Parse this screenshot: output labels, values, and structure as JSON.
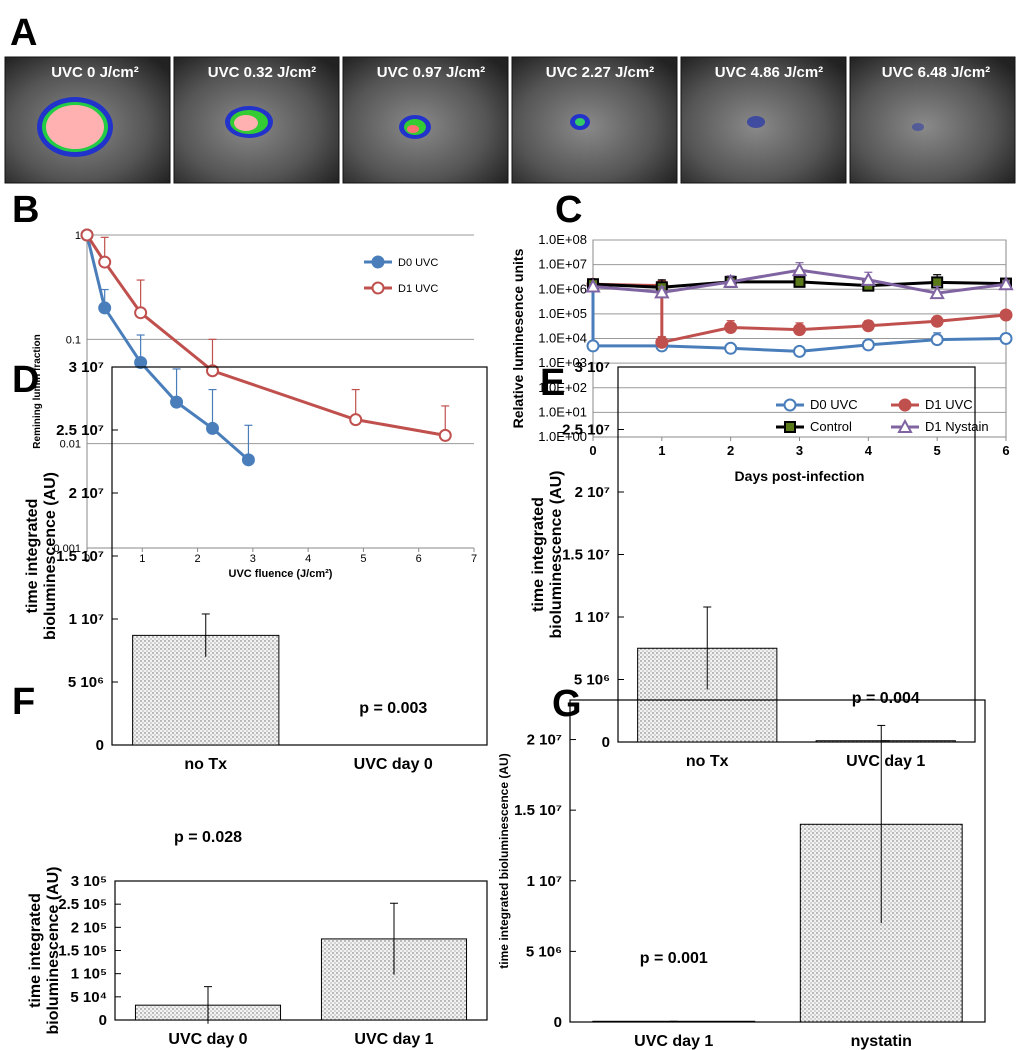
{
  "image_panel": {
    "label": "A",
    "frames": [
      "UVC 0 J/cm²",
      "UVC 0.32 J/cm²",
      "UVC 0.97 J/cm²",
      "UVC 2.27 J/cm²",
      "UVC 4.86 J/cm²",
      "UVC 6.48 J/cm²"
    ]
  },
  "chart_data": [
    {
      "type": "line",
      "label": "B",
      "log_y": true,
      "grid": true,
      "legend": "upper right",
      "xlabel": "UVC fluence (J/cm²)",
      "ylabel": "Remining lumin fraction",
      "xlim": [
        0,
        7
      ],
      "xticks": [
        0,
        1,
        2,
        3,
        4,
        5,
        6,
        7
      ],
      "ylim": [
        0.001,
        1
      ],
      "yticks": [
        0.001,
        0.01,
        0.1,
        1
      ],
      "series": [
        {
          "name": "D0 UVC",
          "color": "#4a7ebb",
          "marker": "circle",
          "marker_fill": "#4a7ebb",
          "x": [
            0,
            0.32,
            0.97,
            1.62,
            2.27,
            2.92
          ],
          "values": [
            1,
            0.2,
            0.06,
            0.025,
            0.014,
            0.007
          ],
          "errors": [
            0,
            0.1,
            0.05,
            0.027,
            0.019,
            0.008
          ]
        },
        {
          "name": "D1 UVC",
          "color": "#c0504d",
          "marker": "circle",
          "marker_fill": "#ffffff",
          "x": [
            0,
            0.32,
            0.97,
            2.27,
            4.86,
            6.48
          ],
          "values": [
            1,
            0.55,
            0.18,
            0.05,
            0.017,
            0.012
          ],
          "errors": [
            0,
            0.4,
            0.19,
            0.05,
            0.016,
            0.011
          ]
        }
      ]
    },
    {
      "type": "line",
      "label": "C",
      "log_y": true,
      "grid": true,
      "legend": "lower right",
      "xlabel": "Days post-infection",
      "ylabel": "Relative luminesence units",
      "xlim": [
        0,
        6
      ],
      "xticks": [
        0,
        1,
        2,
        3,
        4,
        5,
        6
      ],
      "ylim": [
        1,
        100000000
      ],
      "yticks": [
        {
          "value": 1,
          "label": "1.0E+00"
        },
        {
          "value": 10,
          "label": "1.0E+01"
        },
        {
          "value": 100,
          "label": "1.0E+02"
        },
        {
          "value": 1000,
          "label": "1.0E+03"
        },
        {
          "value": 10000,
          "label": "1.0E+04"
        },
        {
          "value": 100000,
          "label": "1.0E+05"
        },
        {
          "value": 1000000,
          "label": "1.0E+06"
        },
        {
          "value": 10000000,
          "label": "1.0E+07"
        },
        {
          "value": 100000000,
          "label": "1.0E+08"
        }
      ],
      "series": [
        {
          "name": "D0 UVC",
          "color": "#4a7ebb",
          "marker": "circle",
          "marker_fill": "#ffffff",
          "x": [
            0,
            0,
            1,
            2,
            3,
            4,
            5,
            6
          ],
          "values": [
            1500000,
            5000,
            5000,
            4000,
            3000,
            5500,
            9000,
            10000
          ],
          "errors": [
            0,
            0,
            0,
            0,
            0,
            3000,
            8000,
            6000
          ]
        },
        {
          "name": "D1 UVC",
          "color": "#c0504d",
          "marker": "circle",
          "marker_fill": "#c0504d",
          "x": [
            0,
            1,
            1,
            2,
            3,
            4,
            5,
            6
          ],
          "values": [
            1600000,
            1400000,
            7000,
            28000,
            23000,
            33000,
            50000,
            90000
          ],
          "errors": [
            0,
            0,
            5000,
            25000,
            20000,
            20000,
            30000,
            40000
          ]
        },
        {
          "name": "Control",
          "color": "#000000",
          "marker": "square",
          "marker_fill": "#5a7a1a",
          "x": [
            0,
            1,
            2,
            3,
            4,
            5,
            6
          ],
          "values": [
            1600000,
            1200000,
            2000000,
            2000000,
            1400000,
            1900000,
            1700000
          ],
          "errors": [
            0,
            1200000,
            1000000,
            1000000,
            700000,
            2000000,
            900000
          ]
        },
        {
          "name": "D1 Nystain",
          "color": "#8064a2",
          "marker": "triangle",
          "marker_fill": "#ffffff",
          "x": [
            0,
            1,
            2,
            3,
            4,
            5,
            6
          ],
          "values": [
            1300000,
            750000,
            2000000,
            6000000,
            2400000,
            700000,
            1600000
          ],
          "errors": [
            300000,
            500000,
            1500000,
            6000000,
            2500000,
            600000,
            600000
          ]
        }
      ]
    },
    {
      "type": "bar",
      "label": "D",
      "ylabel": [
        "time integrated",
        "bioluminescence (AU)"
      ],
      "categories": [
        "no Tx",
        "UVC day 0"
      ],
      "values": [
        8700000,
        0
      ],
      "errors": [
        1700000,
        0
      ],
      "annotation": "p = 0.003",
      "color": "#eeeeee",
      "ylim": [
        0,
        30000000
      ],
      "yticks": [
        0,
        {
          "value": 5000000,
          "label": "5 10⁶"
        },
        {
          "value": 10000000,
          "label": "1 10⁷"
        },
        {
          "value": 15000000,
          "label": "1.5 10⁷"
        },
        {
          "value": 20000000,
          "label": "2 10⁷"
        },
        {
          "value": 25000000,
          "label": "2.5 10⁷"
        },
        {
          "value": 30000000,
          "label": "3 10⁷"
        }
      ]
    },
    {
      "type": "bar",
      "label": "E",
      "ylabel": [
        "time integrated",
        "bioluminescence (AU)"
      ],
      "categories": [
        "no Tx",
        "UVC day 1"
      ],
      "values": [
        7500000,
        100000
      ],
      "errors": [
        3300000,
        0
      ],
      "annotation": "p = 0.004",
      "color": "#eeeeee",
      "ylim": [
        0,
        30000000
      ],
      "yticks": [
        0,
        {
          "value": 5000000,
          "label": "5 10⁶"
        },
        {
          "value": 10000000,
          "label": "1 10⁷"
        },
        {
          "value": 15000000,
          "label": "1.5 10⁷"
        },
        {
          "value": 20000000,
          "label": "2 10⁷"
        },
        {
          "value": 25000000,
          "label": "2.5 10⁷"
        },
        {
          "value": 30000000,
          "label": "3 10⁷"
        }
      ]
    },
    {
      "type": "bar",
      "label": "F",
      "ylabel": [
        "time integrated",
        "bioluminescence (AU)"
      ],
      "categories": [
        "UVC day 0",
        "UVC day 1"
      ],
      "values": [
        32000,
        175000
      ],
      "errors": [
        40000,
        77000
      ],
      "annotation": "p = 0.028",
      "color": "#eeeeee",
      "ylim": [
        0,
        300000
      ],
      "yticks": [
        0,
        {
          "value": 50000,
          "label": "5 10⁴"
        },
        {
          "value": 100000,
          "label": "1 10⁵"
        },
        {
          "value": 150000,
          "label": "1.5 10⁵"
        },
        {
          "value": 200000,
          "label": "2 10⁵"
        },
        {
          "value": 250000,
          "label": "2.5 10⁵"
        },
        {
          "value": 300000,
          "label": "3 10⁵"
        }
      ]
    },
    {
      "type": "bar",
      "label": "G",
      "ylabel": [
        "time integrated bioluminescence (AU)"
      ],
      "categories": [
        "UVC day 1",
        "nystatin"
      ],
      "values": [
        50000,
        14000000
      ],
      "errors": [
        0,
        7000000
      ],
      "annotation": "p = 0.001",
      "color": "#eeeeee",
      "ylim": [
        0,
        22800000
      ],
      "yticks": [
        0,
        {
          "value": 5000000,
          "label": "5 10⁶"
        },
        {
          "value": 10000000,
          "label": "1 10⁷"
        },
        {
          "value": 15000000,
          "label": "1.5 10⁷"
        },
        {
          "value": 20000000,
          "label": "2 10⁷"
        }
      ]
    }
  ]
}
